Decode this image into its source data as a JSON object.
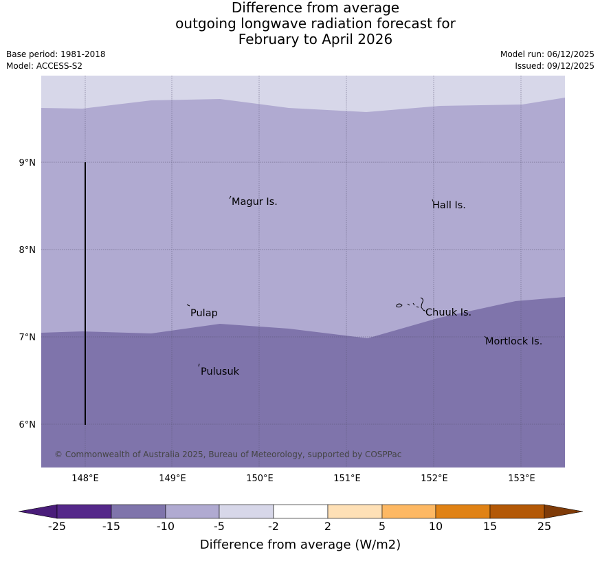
{
  "title": {
    "line1": "Difference from average",
    "line2": "outgoing longwave radiation forecast for",
    "line3": "February to April 2026"
  },
  "meta": {
    "base_period": "Base period: 1981-2018",
    "model": "Model: ACCESS-S2",
    "model_run": "Model run: 06/12/2025",
    "issued": "Issued: 09/12/2025"
  },
  "map": {
    "lat_labels": [
      "9°N",
      "8°N",
      "7°N",
      "6°N"
    ],
    "lon_labels": [
      "148°E",
      "149°E",
      "150°E",
      "151°E",
      "152°E",
      "153°E"
    ],
    "places": [
      "Magur Is.",
      "Hall Is.",
      "Pulap",
      "Chuuk Is.",
      "Mortlock Is.",
      "Pulusuk"
    ],
    "copyright": "© Commonwealth of Australia 2025, Bureau of Meteorology, supported by COSPPac",
    "category_colors": {
      "below_-5": "#d7d7e9",
      "below_-10": "#b0aad1",
      "below_-15": "#7f74ab"
    }
  },
  "colorbar": {
    "title": "Difference from average (W/m2)",
    "ticks": [
      "-25",
      "-15",
      "-10",
      "-5",
      "-2",
      "2",
      "5",
      "10",
      "15",
      "25"
    ],
    "colors": [
      "#4a1d7a",
      "#55288a",
      "#7f74ab",
      "#b0aad1",
      "#d7d7e9",
      "#ffffff",
      "#fee0b6",
      "#fdb863",
      "#e08214",
      "#b35806",
      "#7f3b08"
    ]
  }
}
